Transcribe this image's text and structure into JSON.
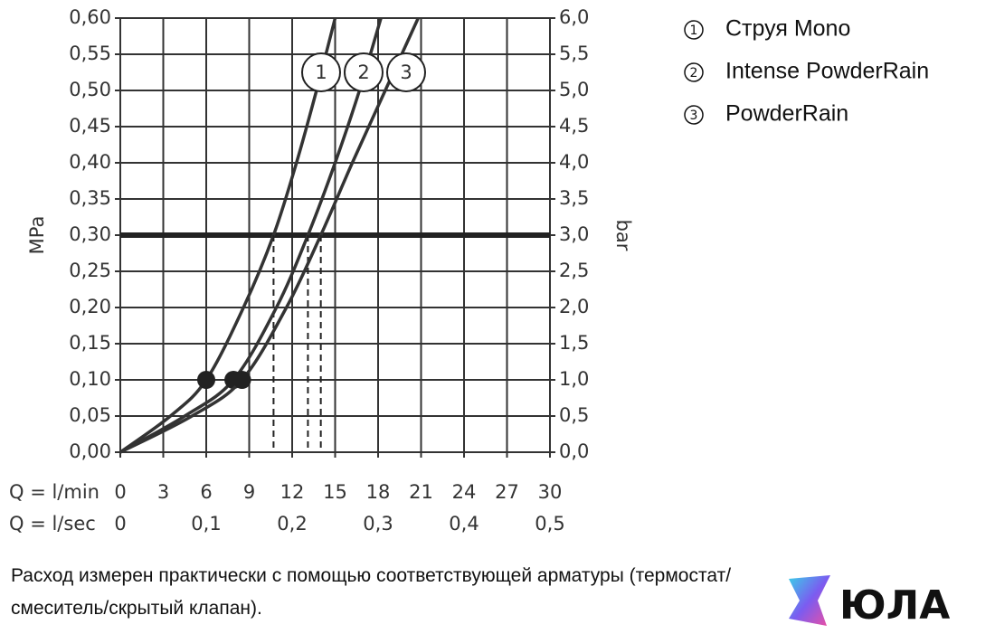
{
  "chart_data": {
    "type": "line",
    "xlabel": "Q = l/min",
    "x2label": "Q = l/sec",
    "ylabel": "MPa",
    "y2label": "bar",
    "xlim": [
      0,
      30
    ],
    "xticks": [
      0,
      3,
      6,
      9,
      12,
      15,
      18,
      21,
      24,
      27,
      30
    ],
    "x2lim": [
      0,
      0.5
    ],
    "x2ticks": [
      {
        "value": 0,
        "label": "0"
      },
      {
        "value": 0.1,
        "label": "0,1"
      },
      {
        "value": 0.2,
        "label": "0,2"
      },
      {
        "value": 0.3,
        "label": "0,3"
      },
      {
        "value": 0.4,
        "label": "0,4"
      },
      {
        "value": 0.5,
        "label": "0,5"
      }
    ],
    "ylim": [
      0,
      0.6
    ],
    "yticks": [
      {
        "value": 0,
        "label": "0,00"
      },
      {
        "value": 0.05,
        "label": "0,05"
      },
      {
        "value": 0.1,
        "label": "0,10"
      },
      {
        "value": 0.15,
        "label": "0,15"
      },
      {
        "value": 0.2,
        "label": "0,20"
      },
      {
        "value": 0.25,
        "label": "0,25"
      },
      {
        "value": 0.3,
        "label": "0,30"
      },
      {
        "value": 0.35,
        "label": "0,35"
      },
      {
        "value": 0.4,
        "label": "0,40"
      },
      {
        "value": 0.45,
        "label": "0,45"
      },
      {
        "value": 0.5,
        "label": "0,50"
      },
      {
        "value": 0.55,
        "label": "0,55"
      },
      {
        "value": 0.6,
        "label": "0,60"
      }
    ],
    "y2lim": [
      0,
      6
    ],
    "y2ticks": [
      {
        "value": 0,
        "label": "0,0"
      },
      {
        "value": 0.5,
        "label": "0,5"
      },
      {
        "value": 1,
        "label": "1,0"
      },
      {
        "value": 1.5,
        "label": "1,5"
      },
      {
        "value": 2,
        "label": "2,0"
      },
      {
        "value": 2.5,
        "label": "2,5"
      },
      {
        "value": 3,
        "label": "3,0"
      },
      {
        "value": 3.5,
        "label": "3,5"
      },
      {
        "value": 4,
        "label": "4,0"
      },
      {
        "value": 4.5,
        "label": "4,5"
      },
      {
        "value": 5,
        "label": "5,0"
      },
      {
        "value": 5.5,
        "label": "5,5"
      },
      {
        "value": 6,
        "label": "6,0"
      }
    ],
    "grid": true,
    "reference_line": 0.3,
    "series": [
      {
        "name": "Струя Mono",
        "label": "1",
        "color": "#333333",
        "x": [
          0,
          3.5,
          6,
          8.6,
          10.7,
          12.3,
          13.7,
          15.0
        ],
        "values": [
          0,
          0.05,
          0.1,
          0.2,
          0.3,
          0.4,
          0.5,
          0.6
        ],
        "marker": {
          "x": 6,
          "y": 0.1
        },
        "rated": {
          "x": 10.7,
          "y": 0.3
        }
      },
      {
        "name": "Intense PowderRain",
        "label": "2",
        "color": "#333333",
        "x": [
          0,
          4.5,
          7.9,
          10.9,
          13.1,
          15.0,
          16.7,
          18.2
        ],
        "values": [
          0,
          0.05,
          0.1,
          0.2,
          0.3,
          0.4,
          0.5,
          0.6
        ],
        "marker": {
          "x": 7.9,
          "y": 0.1
        },
        "rated": {
          "x": 13.1,
          "y": 0.3
        }
      },
      {
        "name": "PowderRain",
        "label": "3",
        "color": "#333333",
        "x": [
          0,
          5,
          8.5,
          11.6,
          14.0,
          16.2,
          18.5,
          20.8
        ],
        "values": [
          0,
          0.05,
          0.1,
          0.2,
          0.3,
          0.4,
          0.5,
          0.6
        ],
        "marker": {
          "x": 8.5,
          "y": 0.1
        },
        "rated": {
          "x": 14.0,
          "y": 0.3
        }
      }
    ]
  },
  "footnote": [
    "Расход измерен практически с помощью соответствующей арматуры (термостат/",
    "смеситель/скрытый клапан)."
  ],
  "watermark": "ЮЛА"
}
